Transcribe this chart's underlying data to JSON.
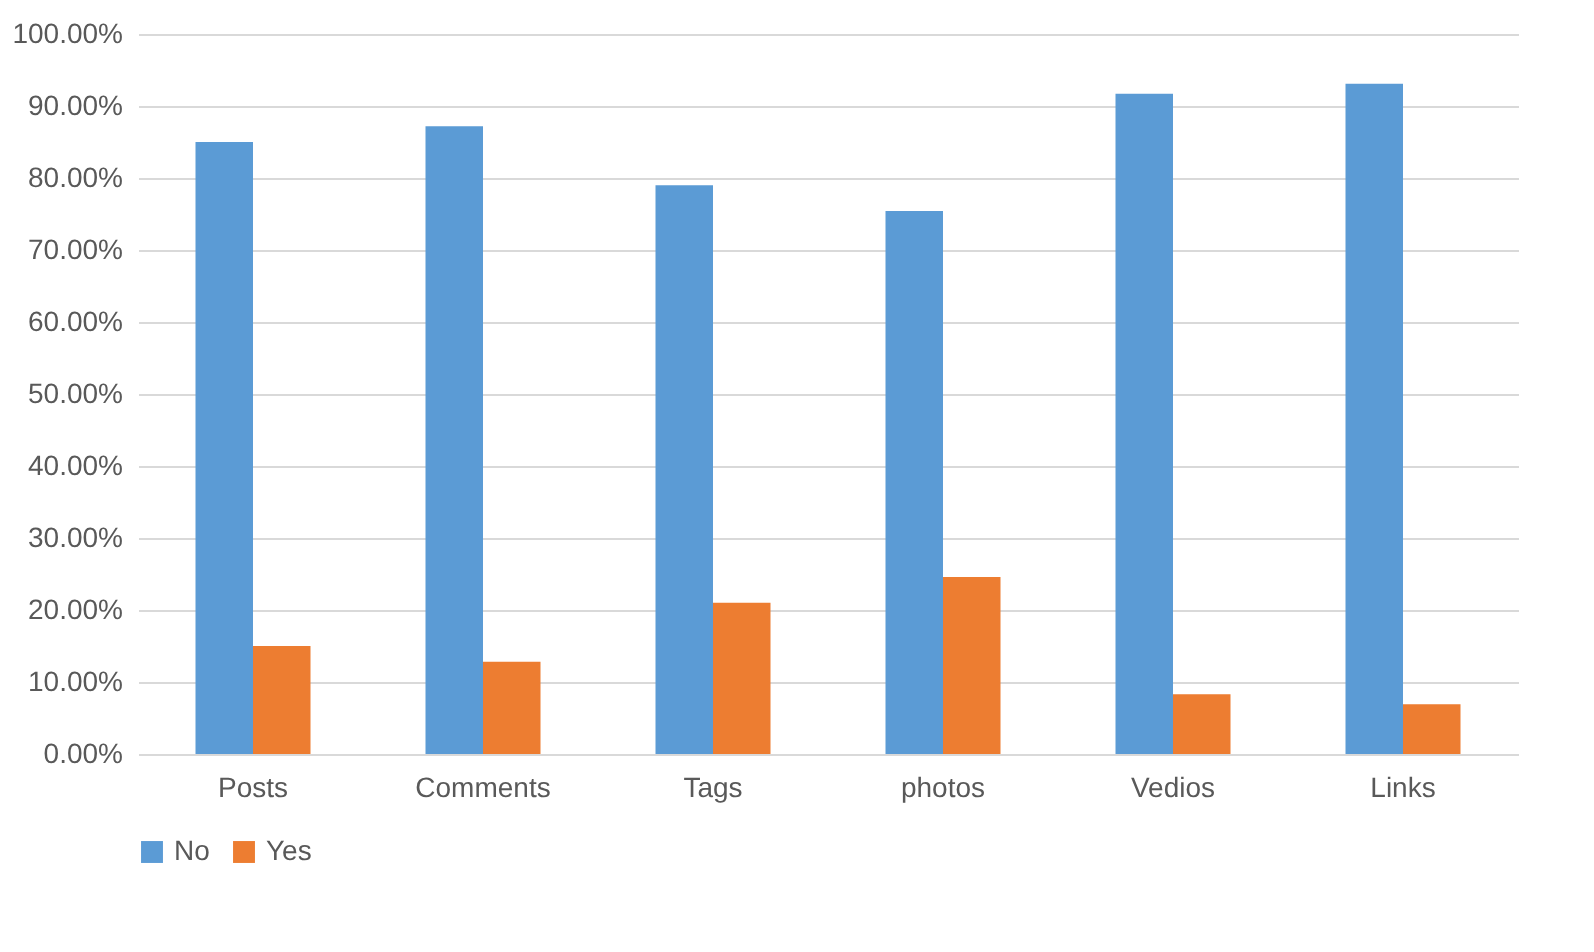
{
  "chart_data": {
    "type": "bar",
    "categories": [
      "Posts",
      "Comments",
      "Tags",
      "photos",
      "Vedios",
      "Links"
    ],
    "series": [
      {
        "name": "No",
        "color": "#5b9bd5",
        "values": [
          85,
          87.2,
          79,
          75.4,
          91.7,
          93.1
        ]
      },
      {
        "name": "Yes",
        "color": "#ed7d31",
        "values": [
          15,
          12.8,
          21,
          24.6,
          8.3,
          6.9
        ]
      }
    ],
    "ylim": [
      0,
      100
    ],
    "yticks": [
      {
        "value": 0,
        "label": "0.00%"
      },
      {
        "value": 10,
        "label": "10.00%"
      },
      {
        "value": 20,
        "label": "20.00%"
      },
      {
        "value": 30,
        "label": "30.00%"
      },
      {
        "value": 40,
        "label": "40.00%"
      },
      {
        "value": 50,
        "label": "50.00%"
      },
      {
        "value": 60,
        "label": "60.00%"
      },
      {
        "value": 70,
        "label": "70.00%"
      },
      {
        "value": 80,
        "label": "80.00%"
      },
      {
        "value": 90,
        "label": "90.00%"
      },
      {
        "value": 100,
        "label": "100.00%"
      }
    ],
    "grid": "y",
    "legend": "bottom"
  }
}
